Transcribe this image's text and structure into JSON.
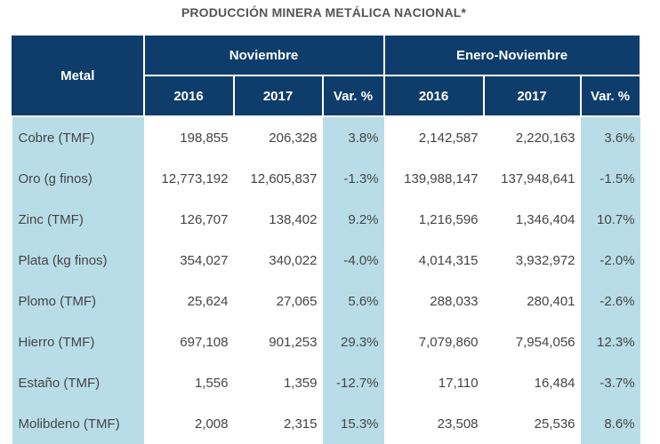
{
  "title": "PRODUCCIÓN MINERA METÁLICA NACIONAL*",
  "header": {
    "metal": "Metal",
    "group1": "Noviembre",
    "group2": "Enero-Noviembre",
    "sub": [
      "2016",
      "2017",
      "Var. %",
      "2016",
      "2017",
      "Var. %"
    ]
  },
  "rows": [
    [
      "Cobre (TMF)",
      "198,855",
      "206,328",
      "3.8%",
      "2,142,587",
      "2,220,163",
      "3.6%"
    ],
    [
      "Oro (g finos)",
      "12,773,192",
      "12,605,837",
      "-1.3%",
      "139,988,147",
      "137,948,641",
      "-1.5%"
    ],
    [
      "Zinc (TMF)",
      "126,707",
      "138,402",
      "9.2%",
      "1,216,596",
      "1,346,404",
      "10.7%"
    ],
    [
      "Plata (kg finos)",
      "354,027",
      "340,022",
      "-4.0%",
      "4,014,315",
      "3,932,972",
      "-2.0%"
    ],
    [
      "Plomo (TMF)",
      "25,624",
      "27,065",
      "5.6%",
      "288,033",
      "280,401",
      "-2.6%"
    ],
    [
      "Hierro (TMF)",
      "697,108",
      "901,253",
      "29.3%",
      "7,079,860",
      "7,954,056",
      "12.3%"
    ],
    [
      "Estaño (TMF)",
      "1,556",
      "1,359",
      "-12.7%",
      "17,110",
      "16,484",
      "-3.7%"
    ],
    [
      "Molibdeno (TMF)",
      "2,008",
      "2,315",
      "15.3%",
      "23,508",
      "25,536",
      "8.6%"
    ]
  ]
}
